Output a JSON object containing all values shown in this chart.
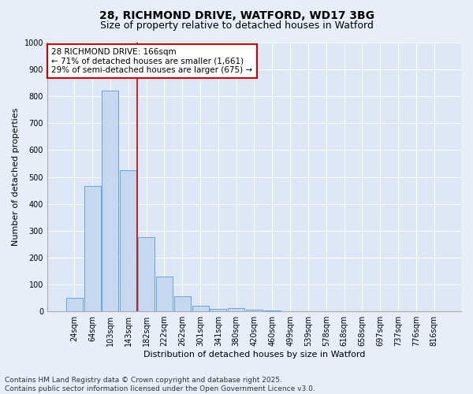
{
  "title_line1": "28, RICHMOND DRIVE, WATFORD, WD17 3BG",
  "title_line2": "Size of property relative to detached houses in Watford",
  "xlabel": "Distribution of detached houses by size in Watford",
  "ylabel": "Number of detached properties",
  "footer_line1": "Contains HM Land Registry data © Crown copyright and database right 2025.",
  "footer_line2": "Contains public sector information licensed under the Open Government Licence v3.0.",
  "categories": [
    "24sqm",
    "64sqm",
    "103sqm",
    "143sqm",
    "182sqm",
    "222sqm",
    "262sqm",
    "301sqm",
    "341sqm",
    "380sqm",
    "420sqm",
    "460sqm",
    "499sqm",
    "539sqm",
    "578sqm",
    "618sqm",
    "658sqm",
    "697sqm",
    "737sqm",
    "776sqm",
    "816sqm"
  ],
  "values": [
    50,
    465,
    820,
    525,
    275,
    130,
    57,
    22,
    8,
    12,
    7,
    2,
    1,
    1,
    0,
    0,
    0,
    0,
    0,
    0,
    0
  ],
  "bar_color": "#c5d8f0",
  "bar_edge_color": "#5b9bd5",
  "property_line_x": 3.5,
  "annotation_text": "28 RICHMOND DRIVE: 166sqm\n← 71% of detached houses are smaller (1,661)\n29% of semi-detached houses are larger (675) →",
  "annotation_box_facecolor": "#ffffff",
  "annotation_box_edgecolor": "#cc0000",
  "property_line_color": "#cc0000",
  "ylim": [
    0,
    1000
  ],
  "yticks": [
    0,
    100,
    200,
    300,
    400,
    500,
    600,
    700,
    800,
    900,
    1000
  ],
  "figure_bg": "#e8eef8",
  "plot_bg": "#dce6f5",
  "grid_color": "#ffffff",
  "title1_fontsize": 10,
  "title2_fontsize": 9,
  "axis_label_fontsize": 8,
  "tick_fontsize": 7,
  "annotation_fontsize": 7.5,
  "footer_fontsize": 6.5
}
